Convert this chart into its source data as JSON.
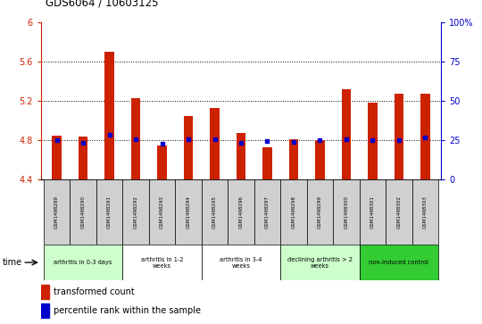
{
  "title": "GDS6064 / 10603125",
  "samples": [
    "GSM1498289",
    "GSM1498290",
    "GSM1498291",
    "GSM1498292",
    "GSM1498293",
    "GSM1498294",
    "GSM1498295",
    "GSM1498296",
    "GSM1498297",
    "GSM1498298",
    "GSM1498299",
    "GSM1498300",
    "GSM1498301",
    "GSM1498302",
    "GSM1498303"
  ],
  "bar_values": [
    4.85,
    4.84,
    5.7,
    5.23,
    4.75,
    5.05,
    5.13,
    4.88,
    4.73,
    4.81,
    4.8,
    5.32,
    5.19,
    5.28,
    5.28
  ],
  "percentile_values": [
    4.8,
    4.775,
    4.855,
    4.815,
    4.77,
    4.81,
    4.81,
    4.778,
    4.793,
    4.79,
    4.802,
    4.81,
    4.802,
    4.805,
    4.835
  ],
  "bar_bottom": 4.4,
  "ylim_left": [
    4.4,
    6.0
  ],
  "ylim_right": [
    0,
    100
  ],
  "yticks_left": [
    4.4,
    4.8,
    5.2,
    5.6,
    6.0
  ],
  "yticks_right": [
    0,
    25,
    50,
    75,
    100
  ],
  "ytick_labels_left": [
    "4.4",
    "4.8",
    "5.2",
    "5.6",
    "6"
  ],
  "ytick_labels_right": [
    "0",
    "25",
    "50",
    "75",
    "100%"
  ],
  "gridlines": [
    5.6,
    5.2,
    4.8
  ],
  "bar_color": "#cc2200",
  "dot_color": "#0000cc",
  "groups": [
    {
      "label": "arthritis in 0-3 days",
      "start": 0,
      "end": 3,
      "color": "#ccffcc"
    },
    {
      "label": "arthritis in 1-2\nweeks",
      "start": 3,
      "end": 6,
      "color": "#ffffff"
    },
    {
      "label": "arthritis in 3-4\nweeks",
      "start": 6,
      "end": 9,
      "color": "#ffffff"
    },
    {
      "label": "declining arthritis > 2\nweeks",
      "start": 9,
      "end": 12,
      "color": "#ccffcc"
    },
    {
      "label": "non-induced control",
      "start": 12,
      "end": 15,
      "color": "#33cc33"
    }
  ],
  "left_color": "#cc2200",
  "right_color": "#0000cc",
  "bar_width": 0.35,
  "cell_color": "#d0d0d0"
}
